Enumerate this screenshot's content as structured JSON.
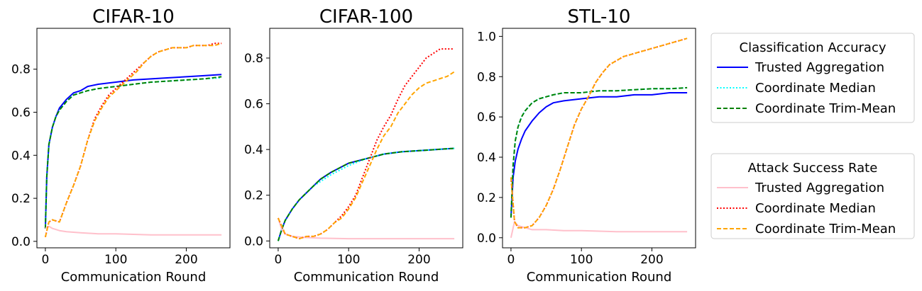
{
  "chart_data": [
    {
      "type": "line",
      "title": "CIFAR-10",
      "xlabel": "Communication Round",
      "ylabel": "",
      "xlim": [
        -12,
        262
      ],
      "ylim": [
        -0.03,
        0.99
      ],
      "xticks": [
        0,
        100,
        200
      ],
      "yticks": [
        0.0,
        0.2,
        0.4,
        0.6,
        0.8
      ],
      "grid": false,
      "series": [
        {
          "name": "Trusted Aggregation",
          "group": "Classification Accuracy",
          "color": "#0000ff",
          "dash": "solid",
          "x": [
            0,
            2,
            5,
            10,
            15,
            20,
            30,
            40,
            50,
            60,
            75,
            100,
            125,
            150,
            175,
            200,
            225,
            250
          ],
          "y": [
            0.06,
            0.3,
            0.45,
            0.53,
            0.58,
            0.62,
            0.66,
            0.69,
            0.7,
            0.72,
            0.73,
            0.74,
            0.75,
            0.755,
            0.76,
            0.765,
            0.77,
            0.775
          ]
        },
        {
          "name": "Coordinate Median",
          "group": "Classification Accuracy",
          "color": "#00ffff",
          "dash": "dotted",
          "x": [
            0,
            2,
            5,
            10,
            15,
            20,
            30,
            40,
            50,
            60,
            75,
            100,
            125,
            150,
            175,
            200,
            225,
            250
          ],
          "y": [
            0.06,
            0.3,
            0.45,
            0.53,
            0.58,
            0.61,
            0.65,
            0.68,
            0.69,
            0.7,
            0.71,
            0.72,
            0.73,
            0.74,
            0.745,
            0.75,
            0.755,
            0.76
          ]
        },
        {
          "name": "Coordinate Trim-Mean",
          "group": "Classification Accuracy",
          "color": "#008000",
          "dash": "dashed",
          "x": [
            0,
            2,
            5,
            10,
            15,
            20,
            30,
            40,
            50,
            60,
            75,
            100,
            125,
            150,
            175,
            200,
            225,
            250
          ],
          "y": [
            0.06,
            0.3,
            0.45,
            0.53,
            0.58,
            0.61,
            0.65,
            0.68,
            0.69,
            0.7,
            0.71,
            0.72,
            0.73,
            0.74,
            0.745,
            0.75,
            0.755,
            0.765
          ]
        },
        {
          "name": "Trusted Aggregation",
          "group": "Attack Success Rate",
          "color": "#ffc0cb",
          "dash": "solid",
          "x": [
            0,
            5,
            10,
            20,
            30,
            50,
            75,
            100,
            150,
            200,
            250
          ],
          "y": [
            0.06,
            0.07,
            0.06,
            0.05,
            0.045,
            0.04,
            0.035,
            0.035,
            0.03,
            0.03,
            0.03
          ]
        },
        {
          "name": "Coordinate Median",
          "group": "Attack Success Rate",
          "color": "#ff0000",
          "dash": "dotted",
          "x": [
            0,
            5,
            10,
            20,
            30,
            40,
            50,
            60,
            70,
            80,
            90,
            100,
            110,
            120,
            130,
            140,
            150,
            160,
            170,
            180,
            190,
            200,
            210,
            220,
            230,
            240,
            250
          ],
          "y": [
            0.02,
            0.09,
            0.1,
            0.09,
            0.18,
            0.26,
            0.35,
            0.47,
            0.57,
            0.63,
            0.68,
            0.71,
            0.74,
            0.77,
            0.8,
            0.83,
            0.86,
            0.88,
            0.89,
            0.9,
            0.9,
            0.9,
            0.91,
            0.91,
            0.91,
            0.92,
            0.92
          ]
        },
        {
          "name": "Coordinate Trim-Mean",
          "group": "Attack Success Rate",
          "color": "#ffa500",
          "dash": "dashed",
          "x": [
            0,
            5,
            10,
            20,
            30,
            40,
            50,
            60,
            70,
            80,
            90,
            100,
            110,
            120,
            130,
            140,
            150,
            160,
            170,
            180,
            190,
            200,
            210,
            220,
            230,
            240,
            250
          ],
          "y": [
            0.02,
            0.09,
            0.1,
            0.09,
            0.18,
            0.26,
            0.35,
            0.47,
            0.56,
            0.62,
            0.67,
            0.7,
            0.73,
            0.76,
            0.79,
            0.83,
            0.86,
            0.88,
            0.89,
            0.9,
            0.9,
            0.9,
            0.91,
            0.91,
            0.91,
            0.91,
            0.92
          ]
        }
      ]
    },
    {
      "type": "line",
      "title": "CIFAR-100",
      "xlabel": "Communication Round",
      "ylabel": "",
      "xlim": [
        -12,
        262
      ],
      "ylim": [
        -0.03,
        0.93
      ],
      "xticks": [
        0,
        100,
        200
      ],
      "yticks": [
        0.0,
        0.2,
        0.4,
        0.6,
        0.8
      ],
      "grid": false,
      "series": [
        {
          "name": "Trusted Aggregation",
          "group": "Classification Accuracy",
          "color": "#0000ff",
          "dash": "solid",
          "x": [
            0,
            5,
            10,
            20,
            30,
            40,
            50,
            60,
            75,
            100,
            125,
            150,
            175,
            200,
            225,
            250
          ],
          "y": [
            0.0,
            0.05,
            0.09,
            0.14,
            0.18,
            0.21,
            0.24,
            0.27,
            0.3,
            0.34,
            0.36,
            0.38,
            0.39,
            0.395,
            0.4,
            0.405
          ]
        },
        {
          "name": "Coordinate Median",
          "group": "Classification Accuracy",
          "color": "#00ffff",
          "dash": "dotted",
          "x": [
            0,
            5,
            10,
            20,
            30,
            40,
            50,
            60,
            75,
            100,
            125,
            150,
            175,
            200,
            225,
            250
          ],
          "y": [
            0.0,
            0.05,
            0.09,
            0.14,
            0.18,
            0.21,
            0.24,
            0.26,
            0.29,
            0.33,
            0.36,
            0.38,
            0.39,
            0.395,
            0.4,
            0.405
          ]
        },
        {
          "name": "Coordinate Trim-Mean",
          "group": "Classification Accuracy",
          "color": "#008000",
          "dash": "dashed",
          "x": [
            0,
            5,
            10,
            20,
            30,
            40,
            50,
            60,
            75,
            100,
            125,
            150,
            175,
            200,
            225,
            250
          ],
          "y": [
            0.0,
            0.05,
            0.09,
            0.14,
            0.18,
            0.21,
            0.24,
            0.27,
            0.3,
            0.34,
            0.36,
            0.38,
            0.39,
            0.395,
            0.4,
            0.405
          ]
        },
        {
          "name": "Trusted Aggregation",
          "group": "Attack Success Rate",
          "color": "#ffc0cb",
          "dash": "solid",
          "x": [
            0,
            5,
            10,
            20,
            40,
            60,
            100,
            150,
            200,
            250
          ],
          "y": [
            0.1,
            0.05,
            0.03,
            0.02,
            0.015,
            0.012,
            0.01,
            0.01,
            0.01,
            0.01
          ]
        },
        {
          "name": "Coordinate Median",
          "group": "Attack Success Rate",
          "color": "#ff0000",
          "dash": "dotted",
          "x": [
            0,
            10,
            20,
            30,
            40,
            50,
            60,
            70,
            80,
            90,
            100,
            110,
            120,
            130,
            140,
            150,
            160,
            170,
            180,
            190,
            200,
            210,
            220,
            230,
            240,
            250
          ],
          "y": [
            0.1,
            0.03,
            0.02,
            0.01,
            0.02,
            0.02,
            0.03,
            0.05,
            0.08,
            0.11,
            0.15,
            0.2,
            0.28,
            0.36,
            0.44,
            0.5,
            0.55,
            0.62,
            0.68,
            0.72,
            0.76,
            0.8,
            0.82,
            0.84,
            0.84,
            0.84
          ]
        },
        {
          "name": "Coordinate Trim-Mean",
          "group": "Attack Success Rate",
          "color": "#ffa500",
          "dash": "dashed",
          "x": [
            0,
            10,
            20,
            30,
            40,
            50,
            60,
            70,
            80,
            90,
            100,
            110,
            120,
            130,
            140,
            150,
            160,
            170,
            180,
            190,
            200,
            210,
            220,
            230,
            240,
            250
          ],
          "y": [
            0.1,
            0.03,
            0.02,
            0.01,
            0.02,
            0.02,
            0.03,
            0.05,
            0.08,
            0.1,
            0.14,
            0.19,
            0.26,
            0.33,
            0.4,
            0.46,
            0.5,
            0.56,
            0.6,
            0.64,
            0.67,
            0.69,
            0.7,
            0.71,
            0.72,
            0.74
          ]
        }
      ]
    },
    {
      "type": "line",
      "title": "STL-10",
      "xlabel": "Communication Round",
      "ylabel": "",
      "xlim": [
        -12,
        262
      ],
      "ylim": [
        -0.05,
        1.04
      ],
      "xticks": [
        0,
        100,
        200
      ],
      "yticks": [
        0.0,
        0.2,
        0.4,
        0.6,
        0.8,
        1.0
      ],
      "grid": false,
      "series": [
        {
          "name": "Trusted Aggregation",
          "group": "Classification Accuracy",
          "color": "#0000ff",
          "dash": "solid",
          "x": [
            0,
            3,
            6,
            10,
            15,
            20,
            30,
            40,
            50,
            60,
            75,
            100,
            125,
            150,
            175,
            200,
            225,
            250
          ],
          "y": [
            0.1,
            0.3,
            0.38,
            0.44,
            0.49,
            0.53,
            0.58,
            0.62,
            0.65,
            0.67,
            0.68,
            0.69,
            0.7,
            0.7,
            0.71,
            0.71,
            0.72,
            0.72
          ]
        },
        {
          "name": "Coordinate Median",
          "group": "Classification Accuracy",
          "color": "#00ffff",
          "dash": "dotted",
          "x": [
            0,
            3,
            6,
            10,
            15,
            20,
            30,
            40,
            50,
            60,
            75,
            100,
            125,
            150,
            175,
            200,
            225,
            250
          ],
          "y": [
            0.1,
            0.36,
            0.48,
            0.55,
            0.6,
            0.63,
            0.67,
            0.69,
            0.7,
            0.71,
            0.72,
            0.72,
            0.73,
            0.73,
            0.735,
            0.74,
            0.74,
            0.745
          ]
        },
        {
          "name": "Coordinate Trim-Mean",
          "group": "Classification Accuracy",
          "color": "#008000",
          "dash": "dashed",
          "x": [
            0,
            3,
            6,
            10,
            15,
            20,
            30,
            40,
            50,
            60,
            75,
            100,
            125,
            150,
            175,
            200,
            225,
            250
          ],
          "y": [
            0.1,
            0.36,
            0.48,
            0.55,
            0.6,
            0.63,
            0.67,
            0.69,
            0.7,
            0.71,
            0.72,
            0.72,
            0.73,
            0.73,
            0.735,
            0.74,
            0.74,
            0.745
          ]
        },
        {
          "name": "Trusted Aggregation",
          "group": "Attack Success Rate",
          "color": "#ffc0cb",
          "dash": "solid",
          "x": [
            0,
            5,
            10,
            20,
            30,
            50,
            75,
            100,
            150,
            200,
            250
          ],
          "y": [
            0.0,
            0.08,
            0.06,
            0.05,
            0.04,
            0.04,
            0.035,
            0.035,
            0.03,
            0.03,
            0.03
          ]
        },
        {
          "name": "Coordinate Median",
          "group": "Attack Success Rate",
          "color": "#ff0000",
          "dash": "dotted",
          "x": [
            0,
            5,
            10,
            20,
            30,
            40,
            50,
            60,
            70,
            80,
            90,
            100,
            110,
            120,
            130,
            140,
            150,
            160,
            170,
            180,
            190,
            200,
            210,
            220,
            230,
            240,
            250
          ],
          "y": [
            0.3,
            0.08,
            0.05,
            0.05,
            0.06,
            0.1,
            0.16,
            0.24,
            0.34,
            0.45,
            0.56,
            0.64,
            0.7,
            0.77,
            0.82,
            0.86,
            0.88,
            0.9,
            0.91,
            0.92,
            0.93,
            0.94,
            0.95,
            0.96,
            0.97,
            0.98,
            0.99
          ]
        },
        {
          "name": "Coordinate Trim-Mean",
          "group": "Attack Success Rate",
          "color": "#ffa500",
          "dash": "dashed",
          "x": [
            0,
            5,
            10,
            20,
            30,
            40,
            50,
            60,
            70,
            80,
            90,
            100,
            110,
            120,
            130,
            140,
            150,
            160,
            170,
            180,
            190,
            200,
            210,
            220,
            230,
            240,
            250
          ],
          "y": [
            0.3,
            0.08,
            0.05,
            0.05,
            0.06,
            0.1,
            0.16,
            0.24,
            0.34,
            0.45,
            0.56,
            0.64,
            0.7,
            0.77,
            0.82,
            0.86,
            0.88,
            0.9,
            0.91,
            0.92,
            0.93,
            0.94,
            0.95,
            0.96,
            0.97,
            0.98,
            0.99
          ]
        }
      ]
    }
  ],
  "legends": [
    {
      "title": "Classification Accuracy",
      "placement": "right-upper",
      "items": [
        {
          "label": "Trusted Aggregation",
          "color": "#0000ff",
          "dash": "solid"
        },
        {
          "label": "Coordinate Median",
          "color": "#00ffff",
          "dash": "dotted"
        },
        {
          "label": "Coordinate Trim-Mean",
          "color": "#008000",
          "dash": "dashed"
        }
      ]
    },
    {
      "title": "Attack Success Rate",
      "placement": "right-lower",
      "items": [
        {
          "label": "Trusted Aggregation",
          "color": "#ffc0cb",
          "dash": "solid"
        },
        {
          "label": "Coordinate Median",
          "color": "#ff0000",
          "dash": "dotted"
        },
        {
          "label": "Coordinate Trim-Mean",
          "color": "#ffa500",
          "dash": "dashed"
        }
      ]
    }
  ]
}
